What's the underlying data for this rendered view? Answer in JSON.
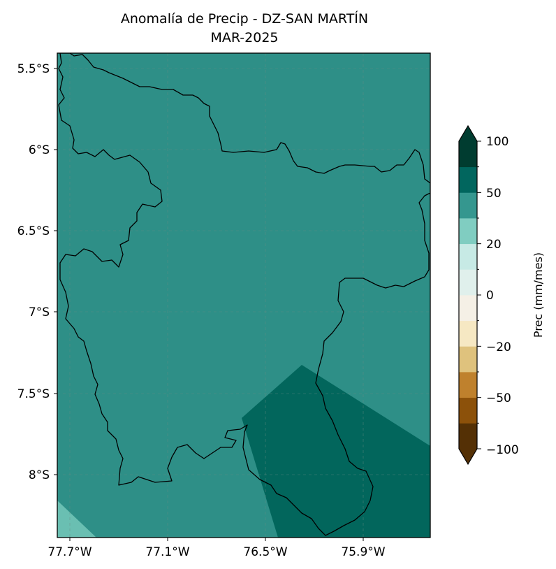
{
  "title_line1": "Anomalía de Precip - DZ-SAN MARTÍN",
  "title_line2": "MAR-2025",
  "lat_ticks": [
    "5.5°S",
    "6°S",
    "6.5°S",
    "7°S",
    "7.5°S",
    "8°S"
  ],
  "lon_ticks": [
    "77.7°W",
    "77.1°W",
    "76.5°W",
    "75.9°W"
  ],
  "colorbar": {
    "label": "Prec (mm/mes)",
    "tick_labels": [
      "100",
      "50",
      "20",
      "0",
      "−20",
      "−50",
      "−100"
    ],
    "colors": [
      "#543005",
      "#8c510a",
      "#bf812d",
      "#dfc27d",
      "#f6e8c3",
      "#f5f0e6",
      "#e0f0ec",
      "#c7eae5",
      "#80cdc1",
      "#35978f",
      "#01665e",
      "#003c30"
    ],
    "extend": "both"
  },
  "map": {
    "background_color": "#35978f",
    "region": "San Martín department outline",
    "anomaly_classes": [
      "20 to 50",
      "50 to 75",
      "10 to 20"
    ],
    "gridlines": true
  }
}
